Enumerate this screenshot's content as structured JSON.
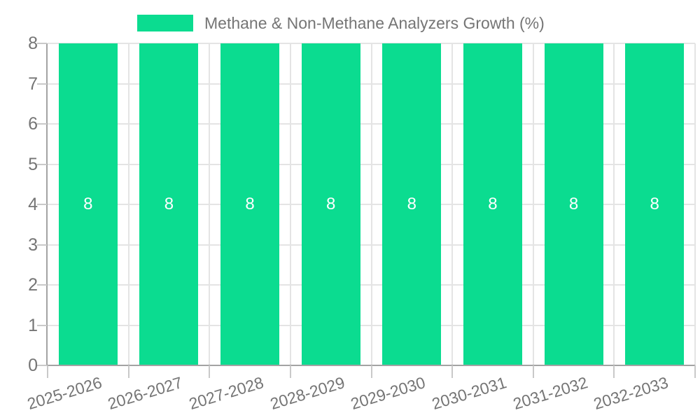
{
  "legend": {
    "label": "Methane & Non-Methane Analyzers Growth (%)",
    "swatch_color": "#0bdc90"
  },
  "chart_data": {
    "type": "bar",
    "title": "Methane & Non-Methane Analyzers Growth (%)",
    "categories": [
      "2025-2026",
      "2026-2027",
      "2027-2028",
      "2028-2029",
      "2029-2030",
      "2030-2031",
      "2031-2032",
      "2032-2033"
    ],
    "series": [
      {
        "name": "Methane & Non-Methane Analyzers Growth (%)",
        "values": [
          8,
          8,
          8,
          8,
          8,
          8,
          8,
          8
        ]
      }
    ],
    "bar_labels": [
      "8",
      "8",
      "8",
      "8",
      "8",
      "8",
      "8",
      "8"
    ],
    "xlabel": "",
    "ylabel": "",
    "ylim": [
      0,
      8
    ],
    "yticks": [
      0,
      1,
      2,
      3,
      4,
      5,
      6,
      7,
      8
    ],
    "grid": true,
    "legend_position": "top",
    "colors": {
      "bar": "#0bdc90",
      "bar_label": "#ffffff",
      "text": "#757575",
      "axis": "#a3a3a3",
      "gridline": "#e4e4e4",
      "tick": "#c9c9c9",
      "background": "#ffffff"
    }
  }
}
